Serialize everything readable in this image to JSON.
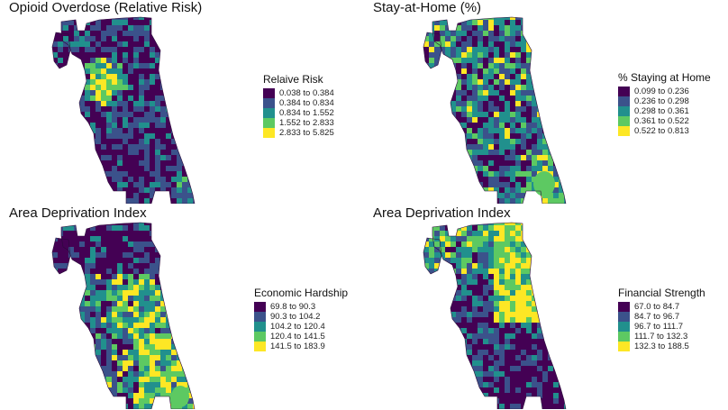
{
  "palette": [
    "#440154",
    "#3b528b",
    "#21908d",
    "#5dc962",
    "#fde725"
  ],
  "panels": [
    {
      "title": "Opioid Overdose (Relative Risk)",
      "legend_title": "Relaive Risk",
      "legend": [
        "0.038 to 0.384",
        "0.384 to 0.834",
        "0.834 to 1.552",
        "1.552 to 2.833",
        "2.833 to 5.825"
      ],
      "pattern": "hotspot-northwest"
    },
    {
      "title": "Stay-at-Home (%)",
      "legend_title": "% Staying at Home",
      "legend": [
        "0.099 to 0.236",
        "0.236 to 0.298",
        "0.298 to 0.361",
        "0.361 to 0.522",
        "0.522 to 0.813"
      ],
      "pattern": "mixed"
    },
    {
      "title": "Area Deprivation Index",
      "legend_title": "Economic Hardship",
      "legend": [
        "69.8 to 90.3",
        "90.3 to 104.2",
        "104.2 to 120.4",
        "120.4 to 141.5",
        "141.5 to 183.9"
      ],
      "pattern": "hardship"
    },
    {
      "title": "Area Deprivation Index",
      "legend_title": "Financial Strength",
      "legend": [
        "67.0 to 84.7",
        "84.7 to 96.7",
        "96.7 to 111.7",
        "111.7 to 132.3",
        "132.3 to 188.5"
      ],
      "pattern": "strength-northeast"
    }
  ]
}
